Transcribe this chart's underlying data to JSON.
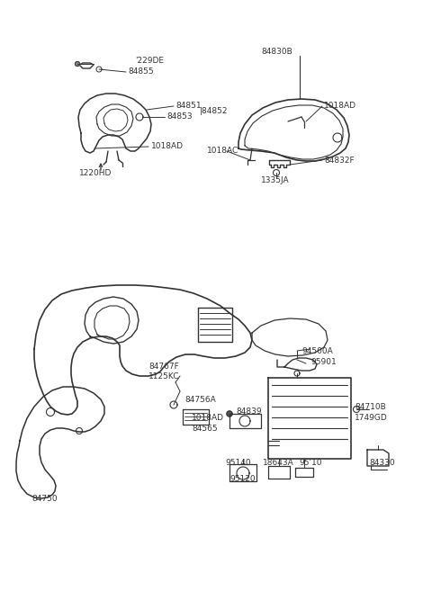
{
  "bg_color": "#ffffff",
  "line_color": "#333333",
  "text_color": "#333333",
  "fs": 6.5,
  "fig_w": 4.8,
  "fig_h": 6.57,
  "dpi": 100,
  "sections": {
    "top_left_labels": [
      [
        "'229DE",
        148,
        68
      ],
      [
        "84855",
        142,
        80
      ],
      [
        "84851",
        195,
        118
      ],
      [
        "84853",
        185,
        130
      ],
      [
        "|84852",
        222,
        124
      ],
      [
        "1018AD",
        168,
        163
      ],
      [
        "1220HD",
        90,
        185
      ]
    ],
    "top_right_labels": [
      [
        "84830B",
        308,
        58
      ],
      [
        "1018AD",
        355,
        118
      ],
      [
        "1018AC",
        252,
        163
      ],
      [
        "84832F",
        360,
        178
      ],
      [
        "1335JA",
        300,
        193
      ]
    ],
    "bottom_labels": [
      [
        "84767F",
        175,
        408
      ],
      [
        "1125KC",
        175,
        420
      ],
      [
        "84756A",
        215,
        445
      ],
      [
        "84839",
        278,
        452
      ],
      [
        "1018AD",
        215,
        458
      ],
      [
        "84565",
        215,
        469
      ],
      [
        "94500A",
        332,
        392
      ],
      [
        "95901",
        342,
        403
      ],
      [
        "84710B",
        415,
        452
      ],
      [
        "1749GD",
        415,
        463
      ],
      [
        "84750",
        72,
        502
      ],
      [
        "95140",
        262,
        512
      ],
      [
        "18643A",
        300,
        512
      ],
      [
        "95'10",
        338,
        512
      ],
      [
        "95120",
        285,
        525
      ],
      [
        "84330",
        418,
        512
      ]
    ]
  }
}
